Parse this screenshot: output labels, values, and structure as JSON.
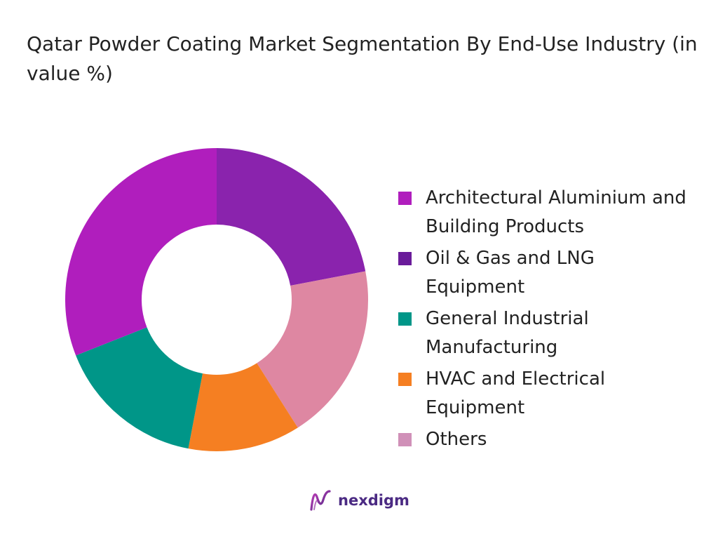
{
  "title": "Qatar Powder Coating Market Segmentation By End-Use Industry (in value %)",
  "chart_data": {
    "type": "pie",
    "style": "donut",
    "title": "Qatar Powder Coating Market Segmentation By End-Use Industry (in value %)",
    "legend_position": "right",
    "categories": [
      "Architectural Aluminium and Building Products",
      "Oil & Gas and LNG Equipment",
      "General Industrial Manufacturing",
      "HVAC and Electrical Equipment",
      "Others"
    ],
    "values": [
      31,
      22,
      16,
      12,
      19
    ],
    "slice_order": [
      "Oil & Gas and LNG Equipment",
      "Others",
      "HVAC and Electrical Equipment",
      "General Industrial Manufacturing",
      "Architectural Aluminium and Building Products"
    ],
    "colors": {
      "Architectural Aluminium and Building Products": "#b01ebd",
      "Oil & Gas and LNG Equipment": "#8a23ad",
      "General Industrial Manufacturing": "#009688",
      "HVAC and Electrical Equipment": "#f57f22",
      "Others": "#de87a2"
    },
    "legend_colors": [
      "#b01ebd",
      "#6a1b9a",
      "#009688",
      "#f57f22",
      "#d090b8"
    ]
  },
  "brand": {
    "logo_text": "nexdigm"
  }
}
